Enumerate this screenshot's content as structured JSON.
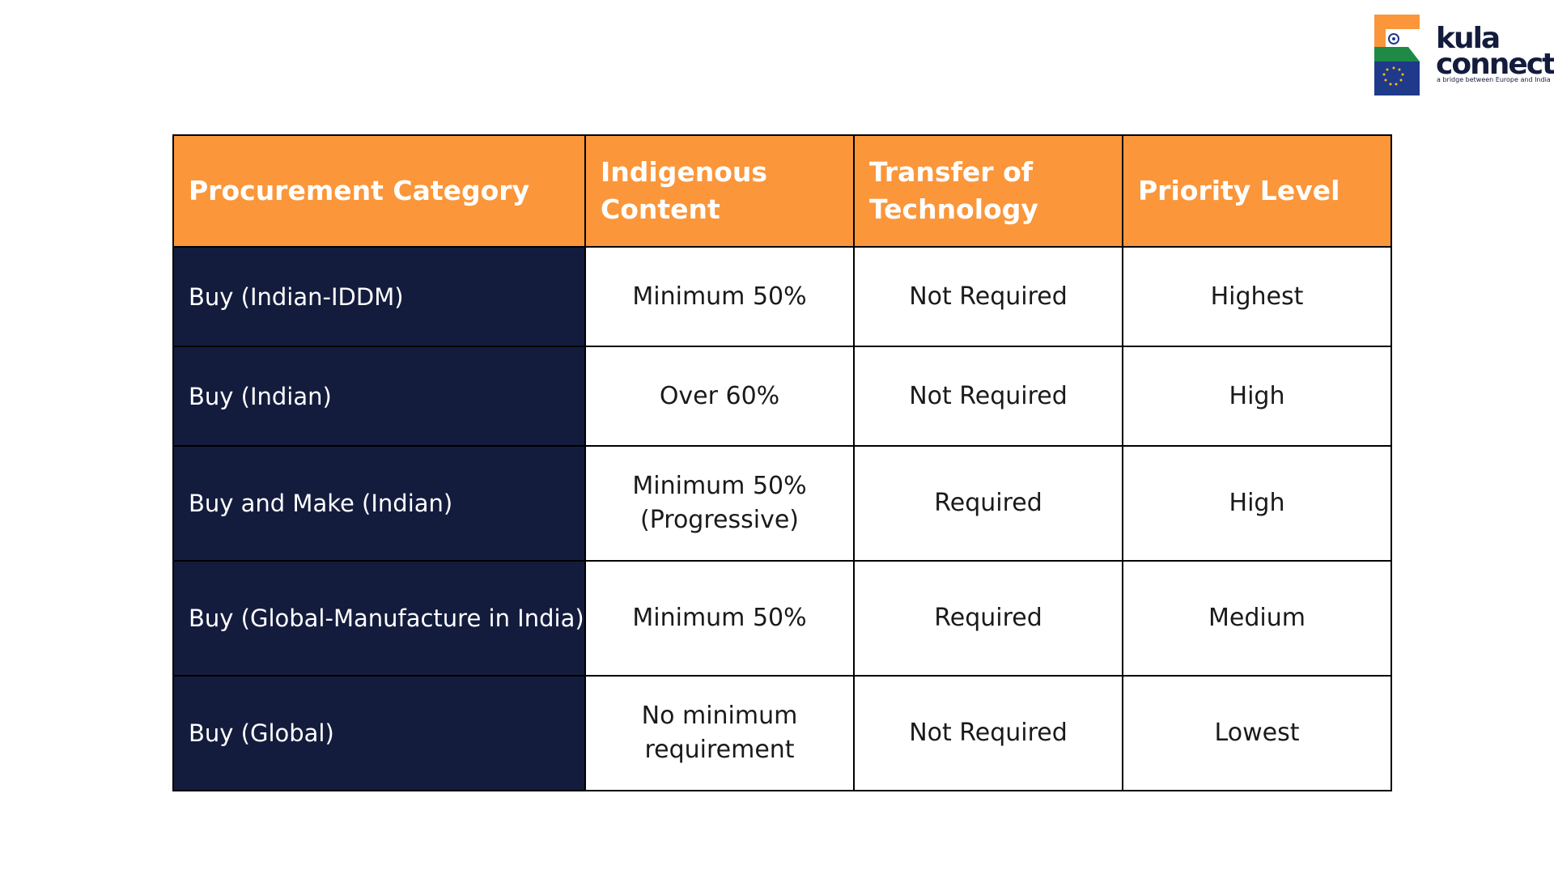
{
  "brand": {
    "name_line1": "kula",
    "name_line2": "connect",
    "tagline": "a bridge between Europe and India",
    "colors": {
      "saffron": "#fb963a",
      "green": "#1e8a45",
      "blue": "#1f3a8a",
      "navy": "#141c3d"
    }
  },
  "table": {
    "headers": [
      "Procurement Category",
      "Indigenous Content",
      "Transfer of Technology",
      "Priority Level"
    ],
    "rows": [
      {
        "category": "Buy (Indian-IDDM)",
        "indigenous": "Minimum 50%",
        "tot": "Not Required",
        "priority": "Highest"
      },
      {
        "category": "Buy (Indian)",
        "indigenous": "Over 60%",
        "tot": "Not Required",
        "priority": "High"
      },
      {
        "category": "Buy and Make (Indian)",
        "indigenous": "Minimum 50% (Progressive)",
        "tot": "Required",
        "priority": "High"
      },
      {
        "category": "Buy (Global-Manufacture in India)",
        "indigenous": "Minimum 50%",
        "tot": "Required",
        "priority": "Medium"
      },
      {
        "category": "Buy (Global)",
        "indigenous": "No minimum requirement",
        "tot": "Not Required",
        "priority": "Lowest"
      }
    ],
    "colors": {
      "header_bg": "#fb963a",
      "rowhead_bg": "#141c3d",
      "border": "#000000"
    }
  }
}
